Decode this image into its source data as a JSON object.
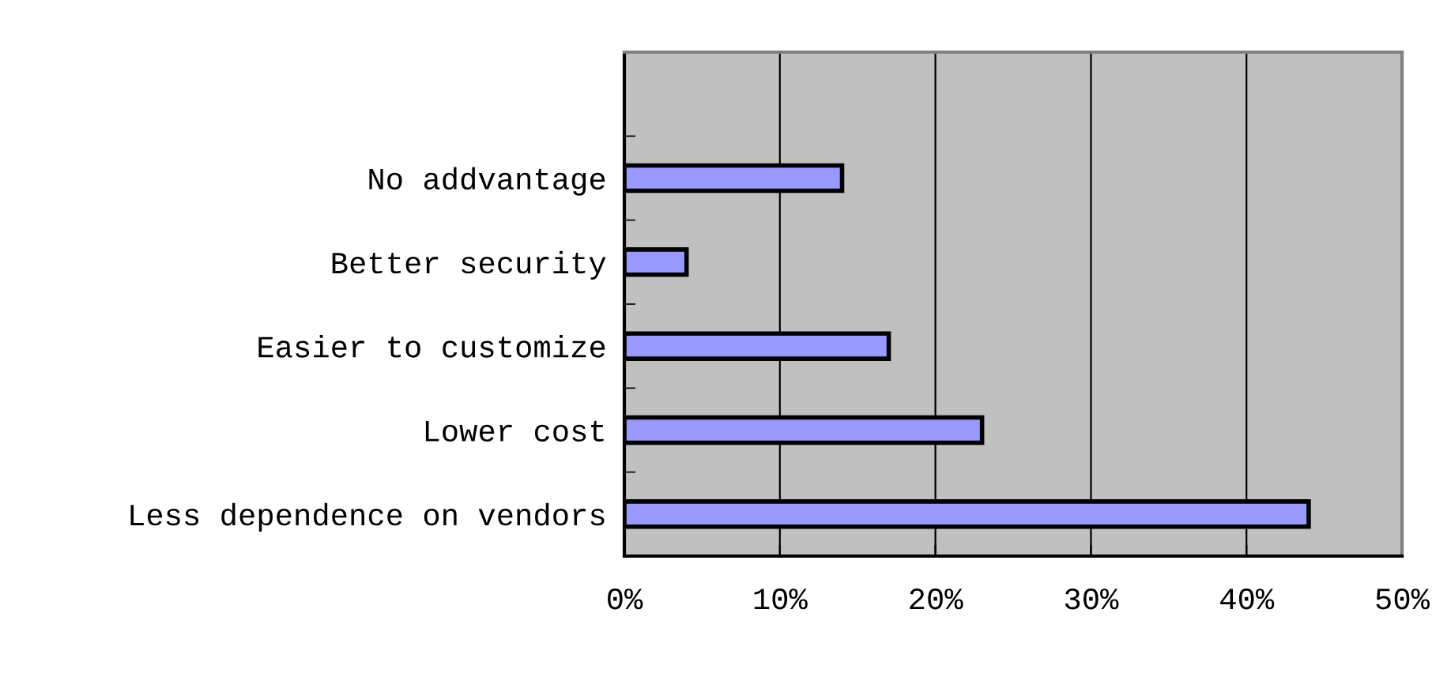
{
  "chart_data": {
    "type": "bar",
    "orientation": "horizontal",
    "categories": [
      null,
      "No addvantage",
      "Better security",
      "Easier to customize",
      "Lower cost",
      "Less dependence on vendors"
    ],
    "series": [
      {
        "color": "#9999ff",
        "values": [
          null,
          14,
          4,
          17,
          23,
          44
        ]
      }
    ],
    "xlim": [
      0,
      50
    ],
    "xticks": [
      {
        "value": 0,
        "label": "0%"
      },
      {
        "value": 10,
        "label": "10%"
      },
      {
        "value": 20,
        "label": "20%"
      },
      {
        "value": 30,
        "label": "30%"
      },
      {
        "value": 40,
        "label": "40%"
      },
      {
        "value": 50,
        "label": "50%"
      }
    ],
    "grid": "x"
  }
}
